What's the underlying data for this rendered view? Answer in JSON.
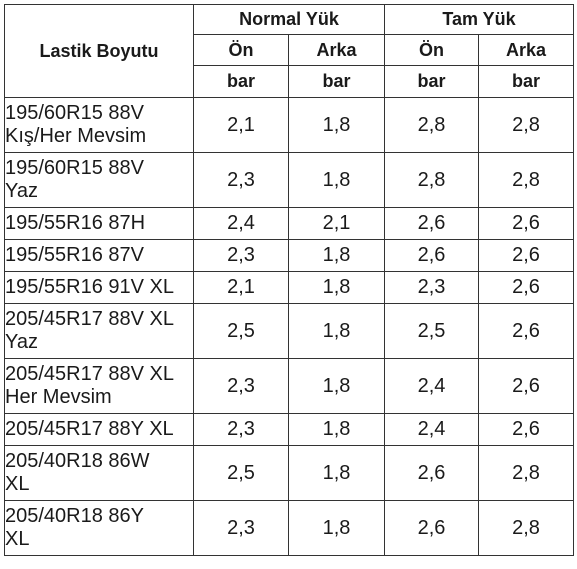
{
  "table": {
    "header": {
      "size_label": "Lastik Boyutu",
      "groups": [
        "Normal Yük",
        "Tam Yük"
      ],
      "positions": [
        "Ön",
        "Arka",
        "Ön",
        "Arka"
      ],
      "units": [
        "bar",
        "bar",
        "bar",
        "bar"
      ]
    },
    "rows": [
      {
        "size": "195/60R15 88V\nKış/Her Mevsim",
        "values": [
          "2,1",
          "1,8",
          "2,8",
          "2,8"
        ]
      },
      {
        "size": "195/60R15 88V\nYaz",
        "values": [
          "2,3",
          "1,8",
          "2,8",
          "2,8"
        ]
      },
      {
        "size": "195/55R16 87H",
        "values": [
          "2,4",
          "2,1",
          "2,6",
          "2,6"
        ]
      },
      {
        "size": "195/55R16 87V",
        "values": [
          "2,3",
          "1,8",
          "2,6",
          "2,6"
        ]
      },
      {
        "size": "195/55R16 91V XL",
        "values": [
          "2,1",
          "1,8",
          "2,3",
          "2,6"
        ]
      },
      {
        "size": "205/45R17 88V XL\nYaz",
        "values": [
          "2,5",
          "1,8",
          "2,5",
          "2,6"
        ]
      },
      {
        "size": "205/45R17 88V XL\nHer Mevsim",
        "values": [
          "2,3",
          "1,8",
          "2,4",
          "2,6"
        ]
      },
      {
        "size": "205/45R17 88Y XL",
        "values": [
          "2,3",
          "1,8",
          "2,4",
          "2,6"
        ]
      },
      {
        "size": "205/40R18 86W\nXL",
        "values": [
          "2,5",
          "1,8",
          "2,6",
          "2,8"
        ]
      },
      {
        "size": "205/40R18 86Y\nXL",
        "values": [
          "2,3",
          "1,8",
          "2,6",
          "2,8"
        ]
      }
    ]
  }
}
